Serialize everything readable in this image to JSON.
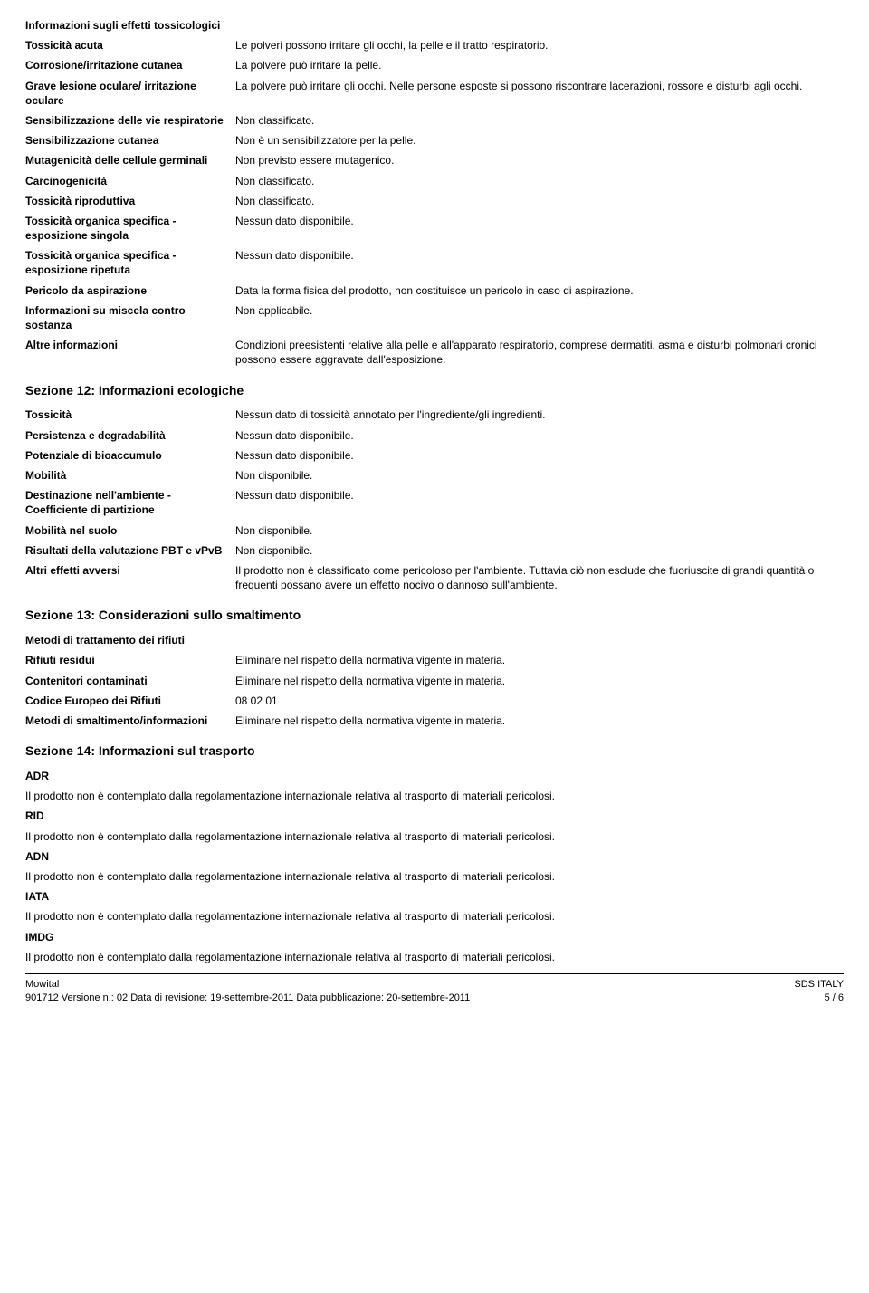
{
  "s11": {
    "title": "Informazioni sugli effetti tossicologici",
    "rows": [
      {
        "label": "Tossicità acuta",
        "value": "Le polveri possono irritare gli occhi, la pelle e il tratto respiratorio."
      },
      {
        "label": "Corrosione/irritazione cutanea",
        "value": "La polvere può irritare la pelle."
      },
      {
        "label": "Grave lesione oculare/ irritazione oculare",
        "value": "La polvere può irritare gli occhi. Nelle persone esposte si possono riscontrare lacerazioni, rossore e disturbi agli occhi."
      },
      {
        "label": "Sensibilizzazione delle vie respiratorie",
        "value": "Non classificato."
      },
      {
        "label": "Sensibilizzazione cutanea",
        "value": "Non è un sensibilizzatore per la pelle."
      },
      {
        "label": "Mutagenicità delle cellule germinali",
        "value": "Non previsto essere mutagenico."
      },
      {
        "label": "Carcinogenicità",
        "value": "Non classificato."
      },
      {
        "label": "Tossicità riproduttiva",
        "value": "Non classificato."
      },
      {
        "label": "Tossicità organica specifica - esposizione singola",
        "value": "Nessun dato disponibile."
      },
      {
        "label": "Tossicità organica specifica - esposizione ripetuta",
        "value": "Nessun dato disponibile."
      },
      {
        "label": "Pericolo da aspirazione",
        "value": "Data la forma fisica del prodotto, non costituisce un pericolo in caso di aspirazione."
      },
      {
        "label": "Informazioni su miscela contro sostanza",
        "value": "Non applicabile."
      },
      {
        "label": "Altre informazioni",
        "value": "Condizioni preesistenti relative alla pelle e all'apparato respiratorio, comprese dermatiti, asma e disturbi polmonari cronici possono essere aggravate dall'esposizione."
      }
    ]
  },
  "s12": {
    "title": "Sezione 12: Informazioni ecologiche",
    "rows": [
      {
        "label": "Tossicità",
        "value": "Nessun dato di tossicità annotato per l'ingrediente/gli ingredienti."
      },
      {
        "label": "Persistenza e degradabilità",
        "value": "Nessun dato disponibile."
      },
      {
        "label": "Potenziale di bioaccumulo",
        "value": "Nessun dato disponibile."
      },
      {
        "label": "Mobilità",
        "value": "Non disponibile."
      },
      {
        "label": "Destinazione nell'ambiente - Coefficiente di partizione",
        "value": "Nessun dato disponibile."
      },
      {
        "label": "Mobilità nel suolo",
        "value": "Non disponibile."
      },
      {
        "label": "Risultati della valutazione PBT e vPvB",
        "value": "Non disponibile."
      },
      {
        "label": "Altri effetti avversi",
        "value": "Il prodotto non è classificato come pericoloso per l'ambiente. Tuttavia ciò non esclude che fuoriuscite di grandi quantità o frequenti possano avere un effetto nocivo o dannoso sull'ambiente."
      }
    ]
  },
  "s13": {
    "title": "Sezione 13: Considerazioni sullo smaltimento",
    "subheading": "Metodi di trattamento dei rifiuti",
    "rows": [
      {
        "label": "Rifiuti residui",
        "value": "Eliminare nel rispetto della normativa vigente in materia."
      },
      {
        "label": "Contenitori contaminati",
        "value": "Eliminare nel rispetto della normativa vigente in materia."
      },
      {
        "label": "Codice Europeo dei Rifiuti",
        "value": "08 02 01"
      },
      {
        "label": "Metodi di smaltimento/informazioni",
        "value": "Eliminare nel rispetto della normativa vigente in materia."
      }
    ]
  },
  "s14": {
    "title": "Sezione 14: Informazioni sul trasporto",
    "items": [
      {
        "mode": "ADR",
        "text": "Il prodotto non è contemplato dalla regolamentazione internazionale relativa al trasporto di materiali pericolosi."
      },
      {
        "mode": "RID",
        "text": "Il prodotto non è contemplato dalla regolamentazione internazionale relativa al trasporto di materiali pericolosi."
      },
      {
        "mode": "ADN",
        "text": "Il prodotto non è contemplato dalla regolamentazione internazionale relativa al trasporto di materiali pericolosi."
      },
      {
        "mode": "IATA",
        "text": "Il prodotto non è contemplato dalla regolamentazione internazionale relativa al trasporto di materiali pericolosi."
      },
      {
        "mode": "IMDG",
        "text": "Il prodotto non è contemplato dalla regolamentazione internazionale relativa al trasporto di materiali pericolosi."
      }
    ]
  },
  "footer": {
    "product": "Mowital",
    "sds": "SDS ITALY",
    "line2_left": "901712   Versione n.: 02   Data di revisione: 19-settembre-2011   Data pubblicazione: 20-settembre-2011",
    "page": "5 / 6"
  }
}
